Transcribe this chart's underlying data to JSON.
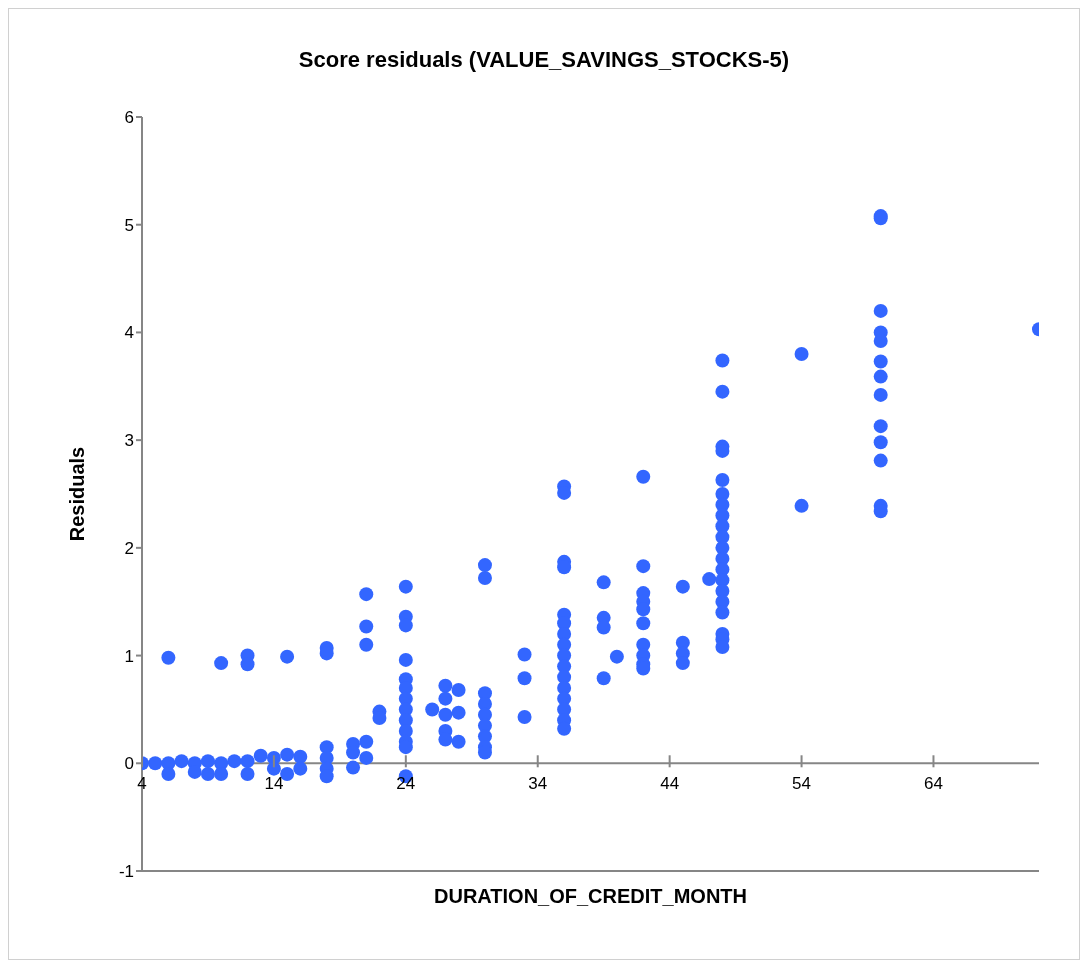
{
  "chart_data": {
    "type": "scatter",
    "title": "Score residuals (VALUE_SAVINGS_STOCKS-5)",
    "xlabel": "DURATION_OF_CREDIT_MONTH",
    "ylabel": "Residuals",
    "color": "#3366ff",
    "marker": "circle",
    "grid": false,
    "xlim": [
      4,
      72
    ],
    "ylim": [
      -1,
      6
    ],
    "xticks": [
      4,
      14,
      24,
      34,
      44,
      54,
      64
    ],
    "yticks": [
      -1,
      0,
      1,
      2,
      3,
      4,
      5,
      6
    ],
    "x": [
      4,
      5,
      6,
      6,
      6,
      7,
      8,
      8,
      9,
      9,
      10,
      10,
      10,
      11,
      12,
      12,
      12,
      12,
      13,
      14,
      14,
      15,
      15,
      15,
      16,
      16,
      18,
      18,
      18,
      18,
      18,
      18,
      20,
      20,
      20,
      21,
      21,
      21,
      21,
      21,
      22,
      22,
      24,
      24,
      24,
      24,
      24,
      24,
      24,
      24,
      24,
      24,
      24,
      24,
      24,
      26,
      27,
      27,
      27,
      27,
      27,
      28,
      28,
      28,
      30,
      30,
      30,
      30,
      30,
      30,
      30,
      30,
      30,
      33,
      33,
      33,
      36,
      36,
      36,
      36,
      36,
      36,
      36,
      36,
      36,
      36,
      36,
      36,
      36,
      36,
      36,
      36,
      39,
      39,
      39,
      39,
      40,
      42,
      42,
      42,
      42,
      42,
      42,
      42,
      42,
      42,
      42,
      45,
      45,
      45,
      45,
      47,
      48,
      48,
      48,
      48,
      48,
      48,
      48,
      48,
      48,
      48,
      48,
      48,
      48,
      48,
      48,
      48,
      48,
      48,
      48,
      48,
      54,
      54,
      60,
      60,
      60,
      60,
      60,
      60,
      60,
      60,
      60,
      60,
      60,
      60,
      60,
      72
    ],
    "values": [
      0,
      0,
      0.98,
      0,
      -0.1,
      0.02,
      0,
      -0.08,
      0.02,
      -0.1,
      0.93,
      0,
      -0.1,
      0.02,
      1.0,
      0.92,
      0.02,
      -0.1,
      0.07,
      0.05,
      -0.05,
      0.99,
      0.08,
      -0.1,
      0.06,
      -0.05,
      1.07,
      1.02,
      0.15,
      0.05,
      -0.05,
      -0.12,
      0.18,
      0.1,
      -0.04,
      1.57,
      1.27,
      1.1,
      0.2,
      0.05,
      0.48,
      0.42,
      1.64,
      1.36,
      1.28,
      0.96,
      0.78,
      0.7,
      0.6,
      0.5,
      0.4,
      0.3,
      0.2,
      0.15,
      -0.12,
      0.5,
      0.72,
      0.6,
      0.45,
      0.3,
      0.22,
      0.68,
      0.47,
      0.2,
      1.84,
      1.72,
      0.65,
      0.55,
      0.45,
      0.35,
      0.25,
      0.15,
      0.1,
      1.01,
      0.79,
      0.43,
      2.57,
      2.51,
      1.87,
      1.82,
      1.38,
      1.3,
      1.2,
      1.1,
      1.0,
      0.9,
      0.8,
      0.7,
      0.6,
      0.5,
      0.4,
      0.32,
      1.68,
      1.35,
      1.26,
      0.79,
      0.99,
      2.66,
      1.83,
      1.58,
      1.5,
      1.43,
      1.3,
      1.1,
      1.0,
      0.92,
      0.88,
      1.64,
      1.12,
      1.02,
      0.93,
      1.71,
      3.74,
      3.45,
      2.94,
      2.9,
      2.63,
      2.5,
      2.4,
      2.3,
      2.2,
      2.1,
      2.0,
      1.9,
      1.8,
      1.7,
      1.6,
      1.5,
      1.4,
      1.2,
      1.15,
      1.08,
      3.8,
      2.39,
      5.08,
      5.06,
      4.2,
      4.0,
      3.92,
      3.73,
      3.59,
      3.42,
      3.13,
      2.98,
      2.81,
      2.39,
      2.34,
      4.03
    ]
  }
}
